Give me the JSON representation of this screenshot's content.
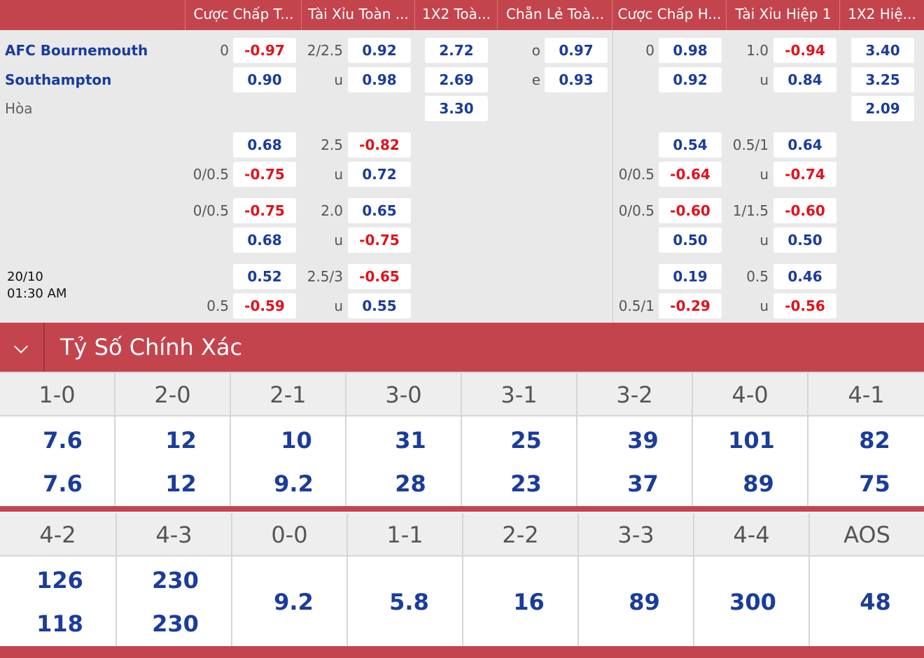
{
  "header": {
    "columns": [
      "Cược Chấp T...",
      "Tài Xỉu Toàn ...",
      "1X2 Toà...",
      "Chẵn Lẻ Toà...",
      "Cược Chấp H...",
      "Tài Xỉu Hiệp 1",
      "1X2 Hiệ..."
    ]
  },
  "match": {
    "home": "AFC Bournemouth",
    "away": "Southampton",
    "draw": "Hòa",
    "date": "20/10",
    "time": "01:30 AM"
  },
  "odds": {
    "r1": {
      "hc_line": "0",
      "hc": "-0.97",
      "ou_line": "2/2.5",
      "ou": "0.92",
      "x12": "2.72",
      "oe_line": "o",
      "oe": "0.97",
      "h1hc_line": "0",
      "h1hc": "0.98",
      "h1ou_line": "1.0",
      "h1ou": "-0.94",
      "h1x12": "3.40"
    },
    "r2": {
      "hc": "0.90",
      "ou_line": "u",
      "ou": "0.98",
      "x12": "2.69",
      "oe_line": "e",
      "oe": "0.93",
      "h1hc": "0.92",
      "h1ou_line": "u",
      "h1ou": "0.84",
      "h1x12": "3.25"
    },
    "r3": {
      "x12": "3.30",
      "h1x12": "2.09"
    },
    "r4": {
      "hc": "0.68",
      "ou_line": "2.5",
      "ou": "-0.82",
      "h1hc": "0.54",
      "h1ou_line": "0.5/1",
      "h1ou": "0.64"
    },
    "r5": {
      "hc_line": "0/0.5",
      "hc": "-0.75",
      "ou_line": "u",
      "ou": "0.72",
      "h1hc_line": "0/0.5",
      "h1hc": "-0.64",
      "h1ou_line": "u",
      "h1ou": "-0.74"
    },
    "r6": {
      "hc_line": "0/0.5",
      "hc": "-0.75",
      "ou_line": "2.0",
      "ou": "0.65",
      "h1hc_line": "0/0.5",
      "h1hc": "-0.60",
      "h1ou_line": "1/1.5",
      "h1ou": "-0.60"
    },
    "r7": {
      "hc": "0.68",
      "ou_line": "u",
      "ou": "-0.75",
      "h1hc": "0.50",
      "h1ou_line": "u",
      "h1ou": "0.50"
    },
    "r8": {
      "hc": "0.52",
      "ou_line": "2.5/3",
      "ou": "-0.65",
      "h1hc": "0.19",
      "h1ou_line": "0.5",
      "h1ou": "0.46"
    },
    "r9": {
      "hc_line": "0.5",
      "hc": "-0.59",
      "ou_line": "u",
      "ou": "0.55",
      "h1hc_line": "0.5/1",
      "h1hc": "-0.29",
      "h1ou_line": "u",
      "h1ou": "-0.56"
    }
  },
  "correct_score": {
    "title": "Tỷ Số Chính Xác",
    "row1": [
      {
        "score": "1-0",
        "home": "7.6",
        "away": "7.6"
      },
      {
        "score": "2-0",
        "home": "12",
        "away": "12"
      },
      {
        "score": "2-1",
        "home": "10",
        "away": "9.2"
      },
      {
        "score": "3-0",
        "home": "31",
        "away": "28"
      },
      {
        "score": "3-1",
        "home": "25",
        "away": "23"
      },
      {
        "score": "3-2",
        "home": "39",
        "away": "37"
      },
      {
        "score": "4-0",
        "home": "101",
        "away": "89"
      },
      {
        "score": "4-1",
        "home": "82",
        "away": "75"
      }
    ],
    "row2": [
      {
        "score": "4-2",
        "home": "126",
        "away": "118"
      },
      {
        "score": "4-3",
        "home": "230",
        "away": "230"
      },
      {
        "score": "0-0",
        "single": "9.2"
      },
      {
        "score": "1-1",
        "single": "5.8"
      },
      {
        "score": "2-2",
        "single": "16"
      },
      {
        "score": "3-3",
        "single": "89"
      },
      {
        "score": "4-4",
        "single": "300"
      },
      {
        "score": "AOS",
        "single": "48"
      }
    ]
  }
}
